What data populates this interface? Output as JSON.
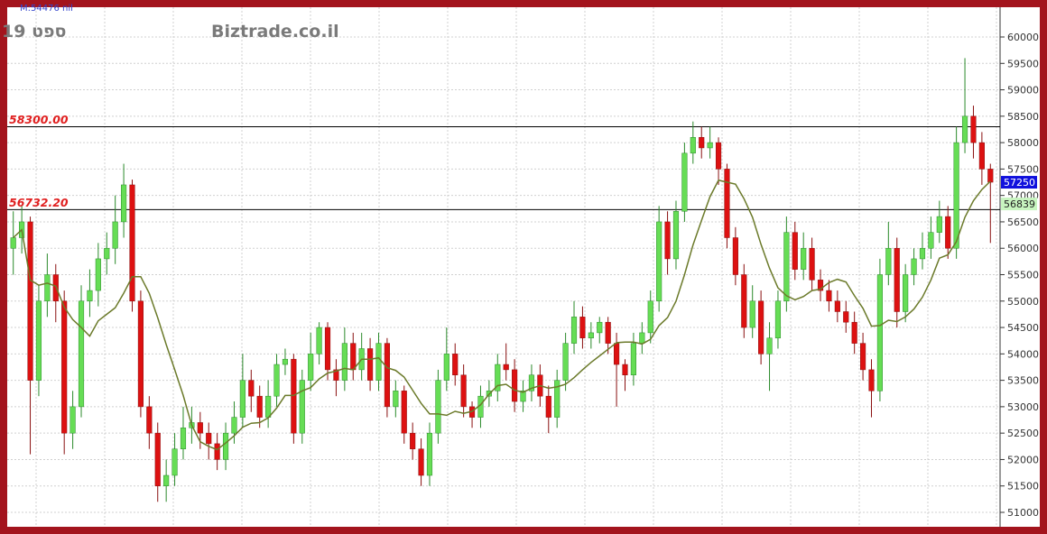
{
  "header": {
    "top_readout": "M:54476 nil",
    "period": "ספט 19",
    "brand": "Biztrade.co.il"
  },
  "colors": {
    "up": "#66dd55",
    "down": "#dd1111",
    "ma": "#6b7a2a",
    "frame": "#a3141d",
    "last_price_bg": "#1010dd",
    "level_bg": "#c8f5c0",
    "level_text": "#e02020"
  },
  "chart_data": {
    "type": "candlestick",
    "ylim": [
      50800,
      60300
    ],
    "yticks": [
      51000,
      51500,
      52000,
      52500,
      53000,
      53500,
      54000,
      54500,
      55000,
      55500,
      56000,
      56500,
      57000,
      57500,
      58000,
      58500,
      59000,
      59500,
      60000
    ],
    "grid": true,
    "levels": [
      {
        "label": "58300.00",
        "value": 58300
      },
      {
        "label": "56732.20",
        "value": 56732.2
      }
    ],
    "last_price": {
      "label": "57250",
      "value": 57250
    },
    "marker": {
      "label": "56839",
      "value": 56839
    },
    "moving_average": true,
    "ohlc": [
      [
        56000,
        56700,
        55500,
        56200
      ],
      [
        56200,
        56800,
        55900,
        56500
      ],
      [
        56500,
        56600,
        52100,
        53500
      ],
      [
        53500,
        55300,
        53200,
        55000
      ],
      [
        55000,
        55900,
        54700,
        55500
      ],
      [
        55500,
        55700,
        54600,
        55000
      ],
      [
        55000,
        55200,
        52100,
        52500
      ],
      [
        52500,
        53300,
        52200,
        53000
      ],
      [
        53000,
        55300,
        52800,
        55000
      ],
      [
        55000,
        55600,
        54700,
        55200
      ],
      [
        55200,
        56100,
        54900,
        55800
      ],
      [
        55800,
        56300,
        55500,
        56000
      ],
      [
        56000,
        57000,
        55700,
        56500
      ],
      [
        56500,
        57600,
        56200,
        57200
      ],
      [
        57200,
        57300,
        54800,
        55000
      ],
      [
        55000,
        55200,
        52800,
        53000
      ],
      [
        53000,
        53200,
        52200,
        52500
      ],
      [
        52500,
        52700,
        51200,
        51500
      ],
      [
        51500,
        52000,
        51200,
        51700
      ],
      [
        51700,
        52500,
        51500,
        52200
      ],
      [
        52200,
        53000,
        52000,
        52600
      ],
      [
        52600,
        53000,
        52300,
        52700
      ],
      [
        52700,
        52900,
        52200,
        52500
      ],
      [
        52500,
        52700,
        52000,
        52300
      ],
      [
        52300,
        52500,
        51800,
        52000
      ],
      [
        52000,
        52700,
        51800,
        52500
      ],
      [
        52500,
        53100,
        52300,
        52800
      ],
      [
        52800,
        54000,
        52600,
        53500
      ],
      [
        53500,
        53700,
        52900,
        53200
      ],
      [
        53200,
        53400,
        52600,
        52800
      ],
      [
        52800,
        53500,
        52600,
        53200
      ],
      [
        53200,
        54000,
        53000,
        53800
      ],
      [
        53800,
        54100,
        53600,
        53900
      ],
      [
        53900,
        54000,
        52300,
        52500
      ],
      [
        52500,
        53700,
        52300,
        53500
      ],
      [
        53500,
        54400,
        53300,
        54000
      ],
      [
        54000,
        54600,
        53800,
        54500
      ],
      [
        54500,
        54600,
        53500,
        53700
      ],
      [
        53700,
        53900,
        53200,
        53500
      ],
      [
        53500,
        54500,
        53300,
        54200
      ],
      [
        54200,
        54400,
        53500,
        53700
      ],
      [
        53700,
        54400,
        53500,
        54100
      ],
      [
        54100,
        54300,
        53300,
        53500
      ],
      [
        53500,
        54400,
        53300,
        54200
      ],
      [
        54200,
        54300,
        52800,
        53000
      ],
      [
        53000,
        53500,
        52800,
        53300
      ],
      [
        53300,
        53400,
        52300,
        52500
      ],
      [
        52500,
        52700,
        52000,
        52200
      ],
      [
        52200,
        52400,
        51500,
        51700
      ],
      [
        51700,
        52700,
        51500,
        52500
      ],
      [
        52500,
        53700,
        52300,
        53500
      ],
      [
        53500,
        54500,
        53300,
        54000
      ],
      [
        54000,
        54200,
        53400,
        53600
      ],
      [
        53600,
        53800,
        52800,
        53000
      ],
      [
        53000,
        53100,
        52600,
        52800
      ],
      [
        52800,
        53400,
        52600,
        53200
      ],
      [
        53200,
        53500,
        53000,
        53300
      ],
      [
        53300,
        54000,
        53100,
        53800
      ],
      [
        53800,
        54200,
        53500,
        53700
      ],
      [
        53700,
        53900,
        52900,
        53100
      ],
      [
        53100,
        53500,
        52900,
        53300
      ],
      [
        53300,
        53800,
        53100,
        53600
      ],
      [
        53600,
        53800,
        53000,
        53200
      ],
      [
        53200,
        53400,
        52500,
        52800
      ],
      [
        52800,
        53700,
        52600,
        53500
      ],
      [
        53500,
        54400,
        53300,
        54200
      ],
      [
        54200,
        55000,
        54000,
        54700
      ],
      [
        54700,
        54900,
        54100,
        54300
      ],
      [
        54300,
        54600,
        54100,
        54400
      ],
      [
        54400,
        54700,
        54200,
        54600
      ],
      [
        54600,
        54700,
        54000,
        54200
      ],
      [
        54200,
        54400,
        53000,
        53800
      ],
      [
        53800,
        53900,
        53300,
        53600
      ],
      [
        53600,
        54400,
        53400,
        54200
      ],
      [
        54200,
        54600,
        54000,
        54400
      ],
      [
        54400,
        55200,
        54200,
        55000
      ],
      [
        55000,
        56800,
        54800,
        56500
      ],
      [
        56500,
        56700,
        55500,
        55800
      ],
      [
        55800,
        56900,
        55600,
        56700
      ],
      [
        56700,
        58000,
        56500,
        57800
      ],
      [
        57800,
        58400,
        57600,
        58100
      ],
      [
        58100,
        58300,
        57700,
        57900
      ],
      [
        57900,
        58300,
        57700,
        58000
      ],
      [
        58000,
        58100,
        57200,
        57500
      ],
      [
        57500,
        57600,
        56000,
        56200
      ],
      [
        56200,
        56400,
        55300,
        55500
      ],
      [
        55500,
        55700,
        54300,
        54500
      ],
      [
        54500,
        55300,
        54300,
        55000
      ],
      [
        55000,
        55200,
        53800,
        54000
      ],
      [
        54000,
        54600,
        53300,
        54300
      ],
      [
        54300,
        55200,
        54100,
        55000
      ],
      [
        55000,
        56600,
        54800,
        56300
      ],
      [
        56300,
        56500,
        55400,
        55600
      ],
      [
        55600,
        56300,
        55400,
        56000
      ],
      [
        56000,
        56200,
        55200,
        55400
      ],
      [
        55400,
        55600,
        55000,
        55200
      ],
      [
        55200,
        55400,
        54800,
        55000
      ],
      [
        55000,
        55200,
        54600,
        54800
      ],
      [
        54800,
        55000,
        54400,
        54600
      ],
      [
        54600,
        54800,
        54000,
        54200
      ],
      [
        54200,
        54400,
        53500,
        53700
      ],
      [
        53700,
        53900,
        52800,
        53300
      ],
      [
        53300,
        55800,
        53100,
        55500
      ],
      [
        55500,
        56500,
        55300,
        56000
      ],
      [
        56000,
        56200,
        54500,
        54800
      ],
      [
        54800,
        55700,
        54600,
        55500
      ],
      [
        55500,
        56000,
        55300,
        55800
      ],
      [
        55800,
        56300,
        55600,
        56000
      ],
      [
        56000,
        56600,
        55800,
        56300
      ],
      [
        56300,
        56900,
        56100,
        56600
      ],
      [
        56600,
        56800,
        55800,
        56000
      ],
      [
        56000,
        58300,
        55800,
        58000
      ],
      [
        58000,
        59600,
        57800,
        58500
      ],
      [
        58500,
        58700,
        57700,
        58000
      ],
      [
        58000,
        58200,
        57200,
        57500
      ],
      [
        57500,
        57600,
        56100,
        57250
      ]
    ]
  }
}
